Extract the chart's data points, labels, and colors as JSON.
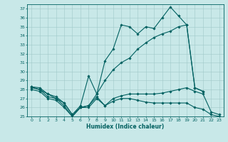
{
  "xlabel": "Humidex (Indice chaleur)",
  "bg_color": "#c8e8e8",
  "grid_color": "#a0c8c8",
  "line_color": "#006060",
  "xlim": [
    -0.5,
    23.5
  ],
  "ylim": [
    25,
    37.5
  ],
  "yticks": [
    25,
    26,
    27,
    28,
    29,
    30,
    31,
    32,
    33,
    34,
    35,
    36,
    37
  ],
  "xticks": [
    0,
    1,
    2,
    3,
    4,
    5,
    6,
    7,
    8,
    9,
    10,
    11,
    12,
    13,
    14,
    15,
    16,
    17,
    18,
    19,
    20,
    21,
    22,
    23
  ],
  "line1_x": [
    0,
    1,
    2,
    3,
    4,
    5,
    6,
    7,
    8,
    9,
    10,
    11,
    12,
    13,
    14,
    15,
    16,
    17,
    18,
    19,
    20,
    21
  ],
  "line1_y": [
    28.3,
    28.2,
    27.5,
    27.2,
    26.5,
    25.2,
    26.2,
    29.5,
    27.5,
    31.2,
    32.5,
    35.2,
    35.0,
    34.2,
    35.0,
    34.8,
    36.0,
    37.2,
    36.2,
    35.2,
    28.2,
    27.8
  ],
  "line2_x": [
    0,
    1,
    2,
    3,
    4,
    5,
    6,
    7,
    8,
    9,
    10,
    11,
    12,
    13,
    14,
    15,
    16,
    17,
    18,
    19,
    20,
    21
  ],
  "line2_y": [
    28.3,
    28.0,
    27.5,
    27.0,
    26.5,
    25.2,
    26.0,
    26.2,
    27.5,
    29.0,
    30.2,
    31.0,
    31.5,
    32.5,
    33.2,
    33.8,
    34.2,
    34.5,
    35.0,
    35.2,
    28.2,
    27.8
  ],
  "line3_x": [
    0,
    1,
    2,
    3,
    4,
    5,
    6,
    7,
    8,
    9,
    10,
    11,
    12,
    13,
    14,
    15,
    16,
    17,
    18,
    19,
    20,
    21,
    22,
    23
  ],
  "line3_y": [
    28.2,
    28.0,
    27.2,
    27.0,
    26.2,
    25.0,
    26.0,
    26.2,
    27.2,
    26.2,
    27.0,
    27.3,
    27.5,
    27.5,
    27.5,
    27.5,
    27.6,
    27.8,
    28.0,
    28.2,
    27.8,
    27.5,
    25.5,
    25.2
  ],
  "line4_x": [
    0,
    1,
    2,
    3,
    4,
    5,
    6,
    7,
    8,
    9,
    10,
    11,
    12,
    13,
    14,
    15,
    16,
    17,
    18,
    19,
    20,
    21,
    22,
    23
  ],
  "line4_y": [
    28.0,
    27.8,
    27.0,
    26.8,
    26.0,
    25.0,
    26.0,
    26.0,
    27.0,
    26.2,
    26.7,
    27.0,
    27.0,
    26.8,
    26.6,
    26.5,
    26.5,
    26.5,
    26.5,
    26.5,
    26.0,
    25.8,
    25.2,
    25.0
  ]
}
